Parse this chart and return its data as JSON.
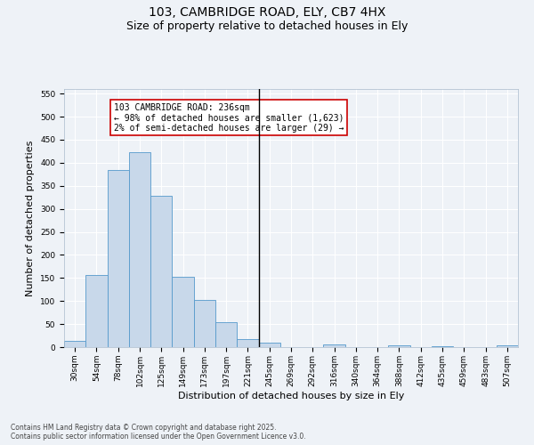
{
  "title_line1": "103, CAMBRIDGE ROAD, ELY, CB7 4HX",
  "title_line2": "Size of property relative to detached houses in Ely",
  "xlabel": "Distribution of detached houses by size in Ely",
  "ylabel": "Number of detached properties",
  "categories": [
    "30sqm",
    "54sqm",
    "78sqm",
    "102sqm",
    "125sqm",
    "149sqm",
    "173sqm",
    "197sqm",
    "221sqm",
    "245sqm",
    "269sqm",
    "292sqm",
    "316sqm",
    "340sqm",
    "364sqm",
    "388sqm",
    "412sqm",
    "435sqm",
    "459sqm",
    "483sqm",
    "507sqm"
  ],
  "values": [
    13,
    157,
    385,
    423,
    328,
    152,
    102,
    55,
    18,
    10,
    0,
    0,
    5,
    0,
    0,
    4,
    0,
    1,
    0,
    0,
    3
  ],
  "bar_color": "#c8d8ea",
  "bar_edge_color": "#5599cc",
  "vline_x": 8.5,
  "vline_color": "#000000",
  "annotation_text": "103 CAMBRIDGE ROAD: 236sqm\n← 98% of detached houses are smaller (1,623)\n2% of semi-detached houses are larger (29) →",
  "annotation_box_color": "#ffffff",
  "annotation_box_edge": "#cc0000",
  "ylim": [
    0,
    560
  ],
  "yticks": [
    0,
    50,
    100,
    150,
    200,
    250,
    300,
    350,
    400,
    450,
    500,
    550
  ],
  "bg_color": "#eef2f7",
  "grid_color": "#ffffff",
  "footer": "Contains HM Land Registry data © Crown copyright and database right 2025.\nContains public sector information licensed under the Open Government Licence v3.0.",
  "title_fontsize": 10,
  "subtitle_fontsize": 9,
  "axis_label_fontsize": 8,
  "tick_fontsize": 6.5,
  "annotation_fontsize": 7,
  "footer_fontsize": 5.5
}
